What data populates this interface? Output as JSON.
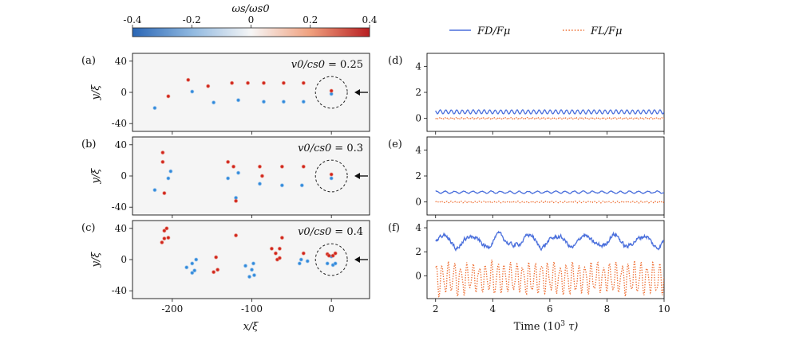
{
  "colorbar": {
    "label": "ωs/ωs0",
    "ticks": [
      "-0.4",
      "-0.2",
      "0",
      "0.2",
      "0.4"
    ],
    "colors": {
      "negative": "#2c6fbf",
      "neutral": "#f4f4f4",
      "positive": "#c61e1e"
    }
  },
  "legend": {
    "items": [
      {
        "label": "FD/Fμ",
        "style": "solid",
        "color": "#4a6fdc"
      },
      {
        "label": "FL/Fμ",
        "style": "dotted",
        "color": "#ee6a2c"
      }
    ]
  },
  "chart_data": [
    {
      "panel": "(a)",
      "type": "scatter",
      "annotation": "v0/cs0 = 0.25",
      "xlim": [
        -250,
        48
      ],
      "ylim": [
        -50,
        50
      ],
      "xticks": [
        -200,
        -100,
        0
      ],
      "yticks": [
        40,
        0,
        -40
      ],
      "xlabel": "",
      "ylabel": "y/ξ",
      "positive_vortices": [
        [
          -205,
          -5
        ],
        [
          -180,
          16
        ],
        [
          -155,
          8
        ],
        [
          -125,
          12
        ],
        [
          -105,
          12
        ],
        [
          -85,
          12
        ],
        [
          -60,
          12
        ],
        [
          -35,
          12
        ],
        [
          0,
          2
        ]
      ],
      "negative_vortices": [
        [
          -222,
          -20
        ],
        [
          -175,
          1
        ],
        [
          -148,
          -13
        ],
        [
          -117,
          -10
        ],
        [
          -85,
          -12
        ],
        [
          -60,
          -12
        ],
        [
          -35,
          -12
        ],
        [
          0,
          -2
        ]
      ],
      "obstacle_circle": {
        "center": [
          0,
          0
        ],
        "radius": 20
      },
      "arrow": "flow direction"
    },
    {
      "panel": "(b)",
      "type": "scatter",
      "annotation": "v0/cs0 = 0.3",
      "xlim": [
        -250,
        48
      ],
      "ylim": [
        -50,
        50
      ],
      "xticks": [
        -200,
        -100,
        0
      ],
      "yticks": [
        40,
        0,
        -40
      ],
      "xlabel": "",
      "ylabel": "y/ξ",
      "positive_vortices": [
        [
          -212,
          30
        ],
        [
          -210,
          -22
        ],
        [
          -212,
          18
        ],
        [
          -130,
          18
        ],
        [
          -123,
          12
        ],
        [
          -120,
          -32
        ],
        [
          -90,
          12
        ],
        [
          -87,
          0
        ],
        [
          -62,
          12
        ],
        [
          -35,
          12
        ],
        [
          0,
          2
        ]
      ],
      "negative_vortices": [
        [
          -222,
          -18
        ],
        [
          -202,
          6
        ],
        [
          -205,
          -3
        ],
        [
          -130,
          -3
        ],
        [
          -117,
          4
        ],
        [
          -120,
          -28
        ],
        [
          -90,
          -10
        ],
        [
          -62,
          -12
        ],
        [
          -37,
          -12
        ],
        [
          0,
          -3
        ]
      ],
      "obstacle_circle": {
        "center": [
          0,
          0
        ],
        "radius": 20
      },
      "arrow": "flow direction"
    },
    {
      "panel": "(c)",
      "type": "scatter",
      "annotation": "v0/cs0 = 0.4",
      "xlim": [
        -250,
        48
      ],
      "ylim": [
        -50,
        50
      ],
      "xticks": [
        -200,
        -100,
        0
      ],
      "yticks": [
        40,
        0,
        -40
      ],
      "xlabel": "x/ξ",
      "ylabel": "y/ξ",
      "positive_vortices": [
        [
          -210,
          37
        ],
        [
          -207,
          40
        ],
        [
          -210,
          27
        ],
        [
          -213,
          22
        ],
        [
          -205,
          28
        ],
        [
          -120,
          31
        ],
        [
          -148,
          -16
        ],
        [
          -143,
          -13
        ],
        [
          -145,
          3
        ],
        [
          -70,
          8
        ],
        [
          -65,
          14
        ],
        [
          -62,
          28
        ],
        [
          -75,
          14
        ],
        [
          -68,
          0
        ],
        [
          -65,
          2
        ],
        [
          -35,
          8
        ],
        [
          -5,
          7
        ],
        [
          -3,
          5
        ],
        [
          2,
          5
        ],
        [
          5,
          8
        ]
      ],
      "negative_vortices": [
        [
          -182,
          -10
        ],
        [
          -175,
          -17
        ],
        [
          -172,
          -14
        ],
        [
          -175,
          -5
        ],
        [
          -170,
          0
        ],
        [
          -108,
          -8
        ],
        [
          -103,
          -22
        ],
        [
          -100,
          -13
        ],
        [
          -98,
          -5
        ],
        [
          -97,
          -20
        ],
        [
          -40,
          -5
        ],
        [
          -38,
          0
        ],
        [
          -30,
          -2
        ],
        [
          -5,
          -5
        ],
        [
          2,
          -7
        ],
        [
          5,
          -5
        ],
        [
          0,
          4
        ]
      ],
      "obstacle_circle": {
        "center": [
          0,
          0
        ],
        "radius": 20
      },
      "arrow": "flow direction"
    },
    {
      "panel": "(d)",
      "type": "line",
      "xlim": [
        1.7,
        10
      ],
      "ylim": [
        -1,
        5
      ],
      "xticks": [
        2,
        4,
        6,
        8,
        10
      ],
      "yticks": [
        4,
        2,
        0
      ],
      "xlabel": "",
      "ylabel": "",
      "series": [
        {
          "name": "FD/Fμ",
          "mean": 0.5,
          "amp": 0.15,
          "freq": 5.2,
          "noise": 0.02
        },
        {
          "name": "FL/Fμ",
          "mean": 0.0,
          "amp": 0.05,
          "freq": 10.4,
          "noise": 0.02
        }
      ]
    },
    {
      "panel": "(e)",
      "type": "line",
      "xlim": [
        1.7,
        10
      ],
      "ylim": [
        -1,
        5
      ],
      "xticks": [
        2,
        4,
        6,
        8,
        10
      ],
      "yticks": [
        4,
        2,
        0
      ],
      "xlabel": "",
      "ylabel": "",
      "series": [
        {
          "name": "FD/Fμ",
          "mean": 0.75,
          "amp": 0.08,
          "freq": 3.1,
          "noise": 0.05
        },
        {
          "name": "FL/Fμ",
          "mean": 0.0,
          "amp": 0.05,
          "freq": 6.0,
          "noise": 0.05
        }
      ]
    },
    {
      "panel": "(f)",
      "type": "line",
      "xlim": [
        1.7,
        10
      ],
      "ylim": [
        -1.9,
        4.6
      ],
      "xticks": [
        2,
        4,
        6,
        8,
        10
      ],
      "yticks": [
        4,
        2,
        0
      ],
      "xlabel": "Time (10^3 τ)",
      "ylabel": "",
      "series": [
        {
          "name": "FD/Fμ",
          "mean": 2.9,
          "amp": 0.45,
          "freq": 1.0,
          "noise": 0.35
        },
        {
          "name": "FL/Fμ",
          "mean": -0.2,
          "amp": 1.1,
          "freq": 4.6,
          "noise": 0.35
        }
      ]
    }
  ],
  "labels": {
    "panel_a": "(a)",
    "panel_b": "(b)",
    "panel_c": "(c)",
    "panel_d": "(d)",
    "panel_e": "(e)",
    "panel_f": "(f)",
    "annot_a_lhs": "v0/cs0",
    "annot_a_val": "= 0.25",
    "annot_b_lhs": "v0/cs0",
    "annot_b_val": "= 0.3",
    "annot_c_lhs": "v0/cs0",
    "annot_c_val": "= 0.4",
    "ylabel": "y/ξ",
    "xlabel_left": "x/ξ",
    "xlabel_right": "Time (10",
    "xlabel_right_exp": "3",
    "xlabel_right_tail": " τ)"
  }
}
